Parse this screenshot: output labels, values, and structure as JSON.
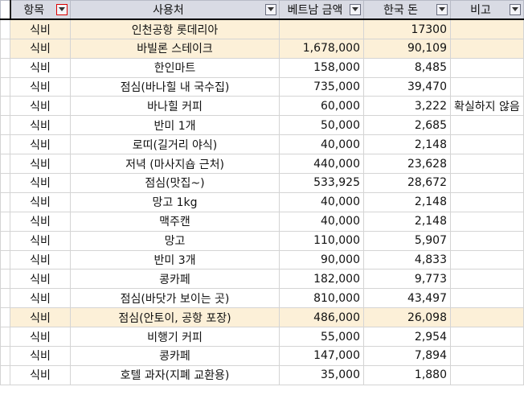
{
  "headers": [
    "항목",
    "사용처",
    "베트남 금액",
    "한국 돈",
    "비고"
  ],
  "colors": {
    "header_bg": "#d9dbe4",
    "highlight_row_bg": "#fcf0d8",
    "grid_line": "#d4d4d4",
    "filter_active_border": "#dd0000"
  },
  "icons": {
    "filter": "filter-dropdown-icon"
  },
  "rows": [
    [
      "식비",
      "인천공항 롯데리아",
      "",
      "17300",
      ""
    ],
    [
      "식비",
      "바빌론 스테이크",
      "1,678,000",
      "90,109",
      ""
    ],
    [
      "식비",
      "한인마트",
      "158,000",
      "8,485",
      ""
    ],
    [
      "식비",
      "점심(바나힐 내 국수집)",
      "735,000",
      "39,470",
      ""
    ],
    [
      "식비",
      "바나힐 커피",
      "60,000",
      "3,222",
      "확실하지 않음"
    ],
    [
      "식비",
      "반미 1개",
      "50,000",
      "2,685",
      ""
    ],
    [
      "식비",
      "로띠(길거리 야식)",
      "40,000",
      "2,148",
      ""
    ],
    [
      "식비",
      "저녁 (마사지숍 근처)",
      "440,000",
      "23,628",
      ""
    ],
    [
      "식비",
      "점심(맛집~)",
      "533,925",
      "28,672",
      ""
    ],
    [
      "식비",
      "망고 1kg",
      "40,000",
      "2,148",
      ""
    ],
    [
      "식비",
      "맥주캔",
      "40,000",
      "2,148",
      ""
    ],
    [
      "식비",
      "망고",
      "110,000",
      "5,907",
      ""
    ],
    [
      "식비",
      "반미 3개",
      "90,000",
      "4,833",
      ""
    ],
    [
      "식비",
      "콩카페",
      "182,000",
      "9,773",
      ""
    ],
    [
      "식비",
      "점심(바닷가 보이는 곳)",
      "810,000",
      "43,497",
      ""
    ],
    [
      "식비",
      "점심(안토이, 공항 포장)",
      "486,000",
      "26,098",
      ""
    ],
    [
      "식비",
      "비행기 커피",
      "55,000",
      "2,954",
      ""
    ],
    [
      "식비",
      "콩카페",
      "147,000",
      "7,894",
      ""
    ],
    [
      "식비",
      "호텔 과자(지폐 교환용)",
      "35,000",
      "1,880",
      ""
    ]
  ]
}
